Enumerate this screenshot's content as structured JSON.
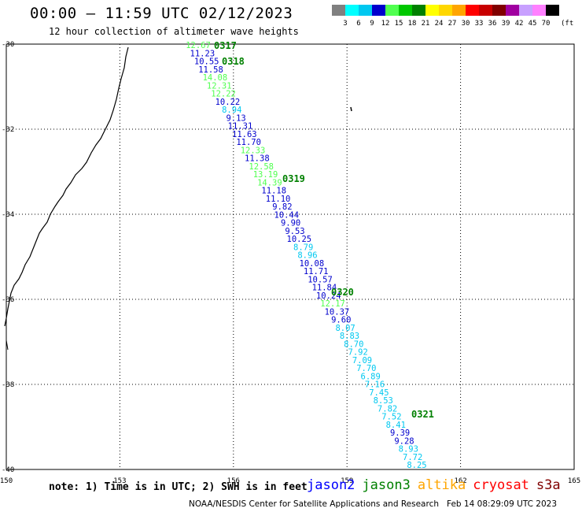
{
  "header": {
    "title": "00:00 – 11:59 UTC 02/12/2023",
    "subtitle": "12 hour collection of altimeter wave heights"
  },
  "colorbar": {
    "labels": [
      "3",
      "6",
      "9",
      "12",
      "15",
      "18",
      "21",
      "24",
      "27",
      "30",
      "33",
      "36",
      "39",
      "42",
      "45",
      "70"
    ],
    "unit": "(ft)",
    "colors": [
      "#808080",
      "#00ffff",
      "#00c8f0",
      "#0000cd",
      "#50ff50",
      "#00c800",
      "#008000",
      "#ffff00",
      "#ffd700",
      "#ffa500",
      "#ff0000",
      "#c80000",
      "#800000",
      "#a000a0",
      "#c8a0ff",
      "#ff80ff",
      "#000000"
    ]
  },
  "map": {
    "lon_range": [
      150,
      165
    ],
    "lat_range": [
      -40,
      -30
    ],
    "x_ticks": [
      "150",
      "153",
      "156",
      "159",
      "162",
      "165"
    ],
    "y_ticks": [
      "-30",
      "-32",
      "-34",
      "-36",
      "-38",
      "-40"
    ],
    "grid": "dotted"
  },
  "time_labels": [
    "0317",
    "0318",
    "0319",
    "0320",
    "0321"
  ],
  "wave_heights": [
    {
      "v": "12.67",
      "c": "#50ff50"
    },
    {
      "v": "11.23",
      "c": "#0000cd"
    },
    {
      "v": "10.55",
      "c": "#0000cd"
    },
    {
      "v": "11.58",
      "c": "#0000cd"
    },
    {
      "v": "14.08",
      "c": "#50ff50"
    },
    {
      "v": "12.31",
      "c": "#50ff50"
    },
    {
      "v": "12.22",
      "c": "#50ff50"
    },
    {
      "v": "10.22",
      "c": "#0000cd"
    },
    {
      "v": "8.94",
      "c": "#00c8f0"
    },
    {
      "v": "9.13",
      "c": "#0000cd"
    },
    {
      "v": "11.31",
      "c": "#0000cd"
    },
    {
      "v": "11.63",
      "c": "#0000cd"
    },
    {
      "v": "11.70",
      "c": "#0000cd"
    },
    {
      "v": "12.33",
      "c": "#50ff50"
    },
    {
      "v": "11.38",
      "c": "#0000cd"
    },
    {
      "v": "12.58",
      "c": "#50ff50"
    },
    {
      "v": "13.19",
      "c": "#50ff50"
    },
    {
      "v": "14.39",
      "c": "#50ff50"
    },
    {
      "v": "11.18",
      "c": "#0000cd"
    },
    {
      "v": "11.10",
      "c": "#0000cd"
    },
    {
      "v": "9.82",
      "c": "#0000cd"
    },
    {
      "v": "10.44",
      "c": "#0000cd"
    },
    {
      "v": "9.90",
      "c": "#0000cd"
    },
    {
      "v": "9.53",
      "c": "#0000cd"
    },
    {
      "v": "10.25",
      "c": "#0000cd"
    },
    {
      "v": "8.79",
      "c": "#00c8f0"
    },
    {
      "v": "8.96",
      "c": "#00c8f0"
    },
    {
      "v": "10.08",
      "c": "#0000cd"
    },
    {
      "v": "11.71",
      "c": "#0000cd"
    },
    {
      "v": "10.57",
      "c": "#0000cd"
    },
    {
      "v": "11.84",
      "c": "#0000cd"
    },
    {
      "v": "10.24",
      "c": "#0000cd"
    },
    {
      "v": "12.17",
      "c": "#50ff50"
    },
    {
      "v": "10.37",
      "c": "#0000cd"
    },
    {
      "v": "9.60",
      "c": "#0000cd"
    },
    {
      "v": "8.07",
      "c": "#00c8f0"
    },
    {
      "v": "8.83",
      "c": "#00c8f0"
    },
    {
      "v": "8.70",
      "c": "#00c8f0"
    },
    {
      "v": "7.92",
      "c": "#00c8f0"
    },
    {
      "v": "7.09",
      "c": "#00c8f0"
    },
    {
      "v": "7.70",
      "c": "#00c8f0"
    },
    {
      "v": "6.89",
      "c": "#00c8f0"
    },
    {
      "v": "7.16",
      "c": "#00c8f0"
    },
    {
      "v": "7.45",
      "c": "#00c8f0"
    },
    {
      "v": "8.53",
      "c": "#00c8f0"
    },
    {
      "v": "7.82",
      "c": "#00c8f0"
    },
    {
      "v": "7.52",
      "c": "#00c8f0"
    },
    {
      "v": "8.41",
      "c": "#00c8f0"
    },
    {
      "v": "9.39",
      "c": "#0000cd"
    },
    {
      "v": "9.28",
      "c": "#0000cd"
    },
    {
      "v": "8.93",
      "c": "#00c8f0"
    },
    {
      "v": "7.72",
      "c": "#00c8f0"
    },
    {
      "v": "8.25",
      "c": "#00c8f0"
    }
  ],
  "footer": {
    "note": "note: 1) Time is in UTC; 2) SWH is in feet",
    "satellites": [
      {
        "name": "jason2",
        "color": "#0000ff"
      },
      {
        "name": "jason3",
        "color": "#008000"
      },
      {
        "name": "altika",
        "color": "#ffa500"
      },
      {
        "name": "cryosat",
        "color": "#ff0000"
      },
      {
        "name": "s3a",
        "color": "#800000"
      }
    ],
    "credit": "NOAA/NESDIS Center for Satellite Applications and Research   Feb 14 08:29:09 UTC 2023"
  }
}
